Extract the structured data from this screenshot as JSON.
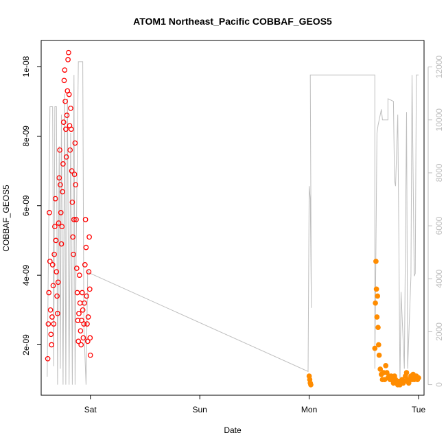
{
  "chart_data": {
    "type": "scatter",
    "title": "ATOM1 Northeast_Pacific COBBAF_GEOS5",
    "xlabel": "Date",
    "ylabel": "COBBAF_GEOS5",
    "x_unit": "days since Saturday 00:00",
    "xlim": [
      -0.45,
      3.05
    ],
    "ylim": [
      5.5e-10,
      1.075e-08
    ],
    "y2lim": [
      -400,
      13000
    ],
    "x_ticks": [
      {
        "value": 0,
        "label": "Sat"
      },
      {
        "value": 1,
        "label": "Sun"
      },
      {
        "value": 2,
        "label": "Mon"
      },
      {
        "value": 3,
        "label": "Tue"
      }
    ],
    "y_ticks": [
      {
        "value": 2e-09,
        "label": "2e-09"
      },
      {
        "value": 4e-09,
        "label": "4e-09"
      },
      {
        "value": 6e-09,
        "label": "6e-09"
      },
      {
        "value": 8e-09,
        "label": "8e-09"
      },
      {
        "value": 1e-08,
        "label": "1e-08"
      }
    ],
    "y2_ticks": [
      {
        "value": 0,
        "label": "0"
      },
      {
        "value": 2000,
        "label": "2000"
      },
      {
        "value": 4000,
        "label": "4000"
      },
      {
        "value": 6000,
        "label": "6000"
      },
      {
        "value": 8000,
        "label": "8000"
      },
      {
        "value": 10000,
        "label": "10000"
      },
      {
        "value": 12000,
        "label": "12000"
      }
    ],
    "colors": {
      "series1": "#ff0000",
      "series2": "#ff8c00",
      "altitude": "#bebebe",
      "axis": "#000000"
    },
    "series": [
      {
        "marker": "open-circle",
        "color": "#ff0000",
        "points": [
          [
            -0.39,
            1.6e-09
          ],
          [
            -0.385,
            2.6e-09
          ],
          [
            -0.38,
            3.5e-09
          ],
          [
            -0.375,
            5.8e-09
          ],
          [
            -0.37,
            4.4e-09
          ],
          [
            -0.365,
            3e-09
          ],
          [
            -0.36,
            2.3e-09
          ],
          [
            -0.355,
            2e-09
          ],
          [
            -0.35,
            2.8e-09
          ],
          [
            -0.345,
            4.3e-09
          ],
          [
            -0.34,
            3.7e-09
          ],
          [
            -0.335,
            2.6e-09
          ],
          [
            -0.33,
            4.6e-09
          ],
          [
            -0.325,
            5.4e-09
          ],
          [
            -0.32,
            6.2e-09
          ],
          [
            -0.315,
            5e-09
          ],
          [
            -0.31,
            4.1e-09
          ],
          [
            -0.305,
            3.4e-09
          ],
          [
            -0.3,
            2.9e-09
          ],
          [
            -0.295,
            3.8e-09
          ],
          [
            -0.29,
            5.5e-09
          ],
          [
            -0.285,
            6.8e-09
          ],
          [
            -0.28,
            7.6e-09
          ],
          [
            -0.275,
            6.6e-09
          ],
          [
            -0.27,
            5.8e-09
          ],
          [
            -0.265,
            4.9e-09
          ],
          [
            -0.26,
            5.4e-09
          ],
          [
            -0.255,
            6.4e-09
          ],
          [
            -0.25,
            7.2e-09
          ],
          [
            -0.245,
            8.4e-09
          ],
          [
            -0.24,
            9.6e-09
          ],
          [
            -0.235,
            9.9e-09
          ],
          [
            -0.23,
            9e-09
          ],
          [
            -0.225,
            8.2e-09
          ],
          [
            -0.22,
            7.4e-09
          ],
          [
            -0.215,
            8.6e-09
          ],
          [
            -0.21,
            9.3e-09
          ],
          [
            -0.205,
            1.02e-08
          ],
          [
            -0.2,
            1.04e-08
          ],
          [
            -0.195,
            9.2e-09
          ],
          [
            -0.19,
            8.3e-09
          ],
          [
            -0.185,
            7.6e-09
          ],
          [
            -0.18,
            8.8e-09
          ],
          [
            -0.175,
            8.2e-09
          ],
          [
            -0.17,
            7e-09
          ],
          [
            -0.165,
            6.1e-09
          ],
          [
            -0.16,
            5.1e-09
          ],
          [
            -0.155,
            4.6e-09
          ],
          [
            -0.15,
            5.6e-09
          ],
          [
            -0.145,
            6.9e-09
          ],
          [
            -0.14,
            7.8e-09
          ],
          [
            -0.135,
            6.6e-09
          ],
          [
            -0.13,
            5.6e-09
          ],
          [
            -0.125,
            4.2e-09
          ],
          [
            -0.12,
            3.5e-09
          ],
          [
            -0.115,
            2.7e-09
          ],
          [
            -0.11,
            2.1e-09
          ],
          [
            -0.105,
            2.9e-09
          ],
          [
            -0.1,
            4e-09
          ],
          [
            -0.095,
            3.2e-09
          ],
          [
            -0.09,
            2.4e-09
          ],
          [
            -0.085,
            2e-09
          ],
          [
            -0.08,
            2.7e-09
          ],
          [
            -0.075,
            3.5e-09
          ],
          [
            -0.07,
            3e-09
          ],
          [
            -0.065,
            2.2e-09
          ],
          [
            -0.06,
            2.6e-09
          ],
          [
            -0.055,
            3.2e-09
          ],
          [
            -0.05,
            4.3e-09
          ],
          [
            -0.045,
            5.6e-09
          ],
          [
            -0.04,
            4.8e-09
          ],
          [
            -0.035,
            3.4e-09
          ],
          [
            -0.03,
            2.6e-09
          ],
          [
            -0.025,
            2.1e-09
          ],
          [
            -0.02,
            2.8e-09
          ],
          [
            -0.015,
            4.1e-09
          ],
          [
            -0.01,
            5.1e-09
          ],
          [
            -0.006,
            3.6e-09
          ],
          [
            -0.003,
            2.2e-09
          ],
          [
            0.0,
            1.7e-09
          ]
        ]
      },
      {
        "marker": "filled-circle",
        "color": "#ff8c00",
        "points": [
          [
            2.0,
            1.1e-09
          ],
          [
            2.005,
            1e-09
          ],
          [
            2.01,
            9e-10
          ],
          [
            2.015,
            8.5e-10
          ],
          [
            2.6,
            1.9e-09
          ],
          [
            2.605,
            3.2e-09
          ],
          [
            2.61,
            4.4e-09
          ],
          [
            2.615,
            3.6e-09
          ],
          [
            2.62,
            2.8e-09
          ],
          [
            2.625,
            3.4e-09
          ],
          [
            2.63,
            2.5e-09
          ],
          [
            2.635,
            2e-09
          ],
          [
            2.64,
            1.7e-09
          ],
          [
            2.65,
            1.3e-09
          ],
          [
            2.66,
            1.15e-09
          ],
          [
            2.67,
            1e-09
          ],
          [
            2.68,
            1.2e-09
          ],
          [
            2.69,
            1e-09
          ],
          [
            2.7,
            1.4e-09
          ],
          [
            2.71,
            1.2e-09
          ],
          [
            2.72,
            1.05e-09
          ],
          [
            2.73,
            1.1e-09
          ],
          [
            2.74,
            1e-09
          ],
          [
            2.75,
            1.1e-09
          ],
          [
            2.76,
            1e-09
          ],
          [
            2.77,
            9e-10
          ],
          [
            2.78,
            1.1e-09
          ],
          [
            2.79,
            1e-09
          ],
          [
            2.8,
            9e-10
          ],
          [
            2.81,
            8.5e-10
          ],
          [
            2.82,
            9.5e-10
          ],
          [
            2.83,
            8.5e-10
          ],
          [
            2.84,
            9e-10
          ],
          [
            2.85,
            1e-09
          ],
          [
            2.86,
            9e-10
          ],
          [
            2.87,
            9.5e-10
          ],
          [
            2.88,
            1.1e-09
          ],
          [
            2.89,
            1.2e-09
          ],
          [
            2.9,
            1e-09
          ],
          [
            2.91,
            9e-10
          ],
          [
            2.92,
            1e-09
          ],
          [
            2.93,
            1.1e-09
          ],
          [
            2.94,
            1e-09
          ],
          [
            2.95,
            1.15e-09
          ],
          [
            2.96,
            1e-09
          ],
          [
            2.97,
            1.05e-09
          ],
          [
            2.98,
            1.1e-09
          ],
          [
            2.99,
            1e-09
          ],
          [
            3.0,
            1.05e-09
          ]
        ]
      },
      {
        "axis": "right",
        "style": "line",
        "color": "#bebebe",
        "points": [
          [
            -0.395,
            300
          ],
          [
            -0.37,
            10500
          ],
          [
            -0.345,
            10500
          ],
          [
            -0.335,
            700
          ],
          [
            -0.325,
            10500
          ],
          [
            -0.31,
            10500
          ],
          [
            -0.3,
            0
          ],
          [
            -0.285,
            9000
          ],
          [
            -0.275,
            600
          ],
          [
            -0.265,
            10200
          ],
          [
            -0.25,
            0
          ],
          [
            -0.235,
            11000
          ],
          [
            -0.225,
            0
          ],
          [
            -0.21,
            10800
          ],
          [
            -0.195,
            0
          ],
          [
            -0.18,
            9500
          ],
          [
            -0.165,
            0
          ],
          [
            -0.15,
            11700
          ],
          [
            -0.14,
            0
          ],
          [
            -0.13,
            5000
          ],
          [
            -0.11,
            12200
          ],
          [
            -0.07,
            12200
          ],
          [
            -0.06,
            2200
          ],
          [
            -0.04,
            0
          ],
          [
            -0.025,
            4300
          ],
          [
            0.0,
            4200
          ],
          [
            1.99,
            500
          ],
          [
            2.0,
            7500
          ],
          [
            2.01,
            7000
          ],
          [
            2.02,
            2900
          ],
          [
            2.01,
            11700
          ],
          [
            2.6,
            11700
          ],
          [
            2.6,
            600
          ],
          [
            2.62,
            9500
          ],
          [
            2.63,
            9800
          ],
          [
            2.66,
            10400
          ],
          [
            2.67,
            10000
          ],
          [
            2.68,
            10000
          ],
          [
            2.72,
            10000
          ],
          [
            2.72,
            10800
          ],
          [
            2.77,
            10700
          ],
          [
            2.78,
            7700
          ],
          [
            2.79,
            7500
          ],
          [
            2.81,
            10200
          ],
          [
            2.82,
            5500
          ],
          [
            2.83,
            0
          ],
          [
            2.84,
            3500
          ],
          [
            2.87,
            600
          ],
          [
            2.89,
            10300
          ],
          [
            2.9,
            600
          ],
          [
            2.93,
            4100
          ],
          [
            2.94,
            11700
          ],
          [
            2.96,
            4100
          ],
          [
            2.97,
            4200
          ],
          [
            2.98,
            11700
          ],
          [
            3.0,
            11700
          ]
        ]
      }
    ]
  }
}
